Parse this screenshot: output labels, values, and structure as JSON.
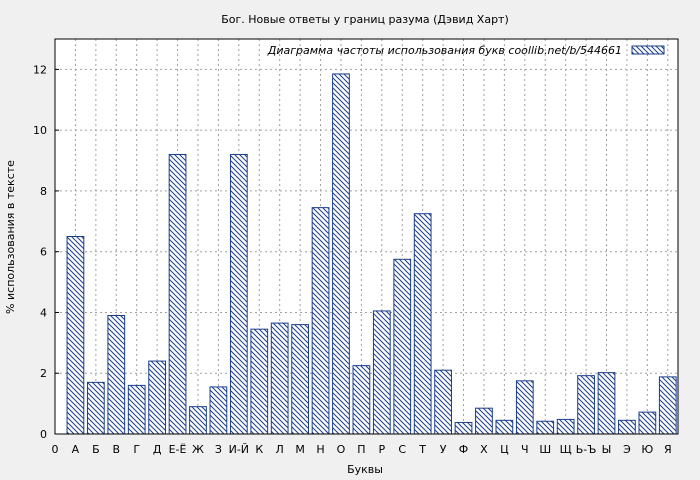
{
  "chart_data": {
    "type": "bar",
    "title": "Бог. Новые ответы у границ разума (Дэвид Харт)",
    "xlabel": "Буквы",
    "ylabel": "% использования в тексте",
    "legend": "Диаграмма частоты использования букв  coollib.net/b/544661",
    "legend_position": "top-right",
    "grid": true,
    "ylim": [
      0,
      13
    ],
    "yticks": [
      0,
      2,
      4,
      6,
      8,
      10,
      12
    ],
    "bar_color": "#1a3d8c",
    "categories": [
      "0",
      "А",
      "Б",
      "В",
      "Г",
      "Д",
      "Е-Ё",
      "Ж",
      "З",
      "И-Й",
      "К",
      "Л",
      "М",
      "Н",
      "О",
      "П",
      "Р",
      "С",
      "Т",
      "У",
      "Ф",
      "Х",
      "Ц",
      "Ч",
      "Ш",
      "Щ",
      "Ь-Ъ",
      "Ы",
      "Э",
      "Ю",
      "Я"
    ],
    "values": [
      0,
      6.5,
      1.7,
      3.9,
      1.6,
      2.4,
      9.2,
      0.9,
      1.55,
      9.2,
      3.45,
      3.65,
      3.6,
      7.45,
      11.85,
      2.25,
      4.05,
      5.75,
      7.25,
      2.1,
      0.38,
      0.85,
      0.45,
      1.75,
      0.42,
      0.48,
      1.92,
      2.02,
      0.45,
      0.72,
      1.88
    ]
  }
}
